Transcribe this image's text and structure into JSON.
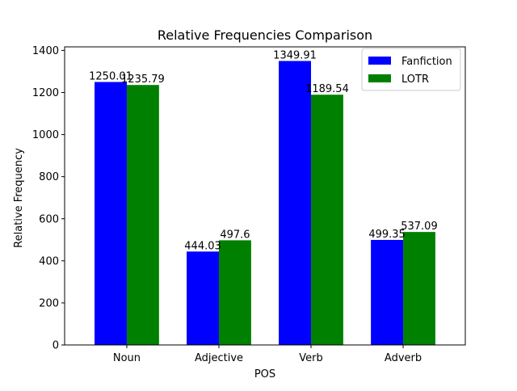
{
  "chart_data": {
    "type": "bar",
    "title": "Relative Frequencies Comparison",
    "xlabel": "POS",
    "ylabel": "Relative Frequency",
    "categories": [
      "Noun",
      "Adjective",
      "Verb",
      "Adverb"
    ],
    "series": [
      {
        "name": "Fanfiction",
        "color": "#0000ff",
        "values": [
          1250.01,
          444.03,
          1349.91,
          499.35
        ],
        "labels": [
          "1250.01",
          "444.03",
          "1349.91",
          "499.35"
        ]
      },
      {
        "name": "LOTR",
        "color": "#008000",
        "values": [
          1235.79,
          497.6,
          1189.54,
          537.09
        ],
        "labels": [
          "1235.79",
          "497.6",
          "1189.54",
          "537.09"
        ]
      }
    ],
    "ylim": [
      0,
      1417
    ],
    "yticks": [
      0,
      200,
      400,
      600,
      800,
      1000,
      1200,
      1400
    ],
    "grid": false,
    "legend_position": "top-right"
  }
}
